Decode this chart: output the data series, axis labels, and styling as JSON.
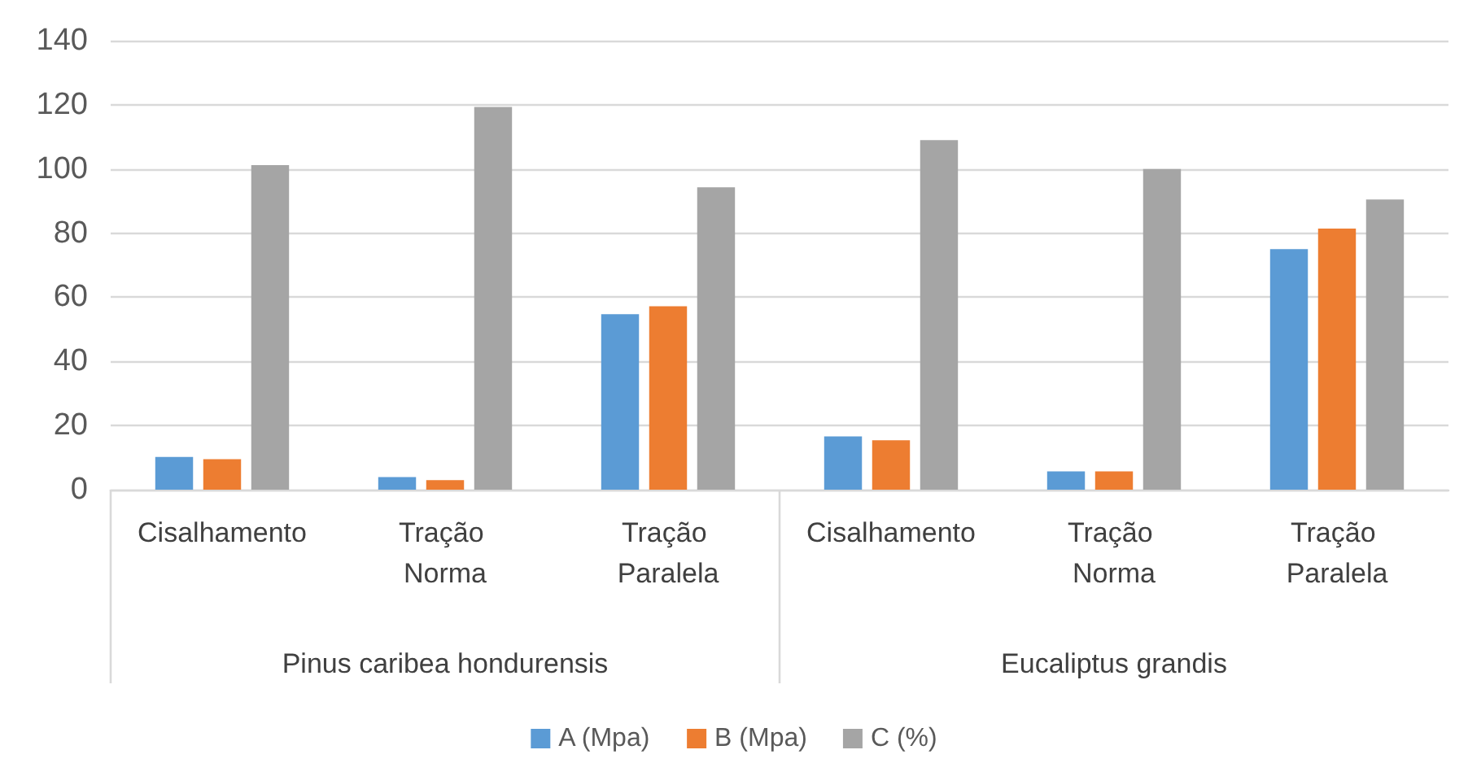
{
  "chart_data": {
    "type": "bar",
    "categories": [
      "Cisalhamento",
      "Tração Norma",
      "Tração Paralela",
      "Cisalhamento",
      "Tração Norma",
      "Tração Paralela"
    ],
    "series": [
      {
        "name": "A (Mpa)",
        "color": "#5b9bd5",
        "values": [
          10.2,
          3.9,
          54.7,
          16.6,
          5.7,
          75
        ]
      },
      {
        "name": "B (Mpa)",
        "color": "#ed7d31",
        "values": [
          9.5,
          3,
          57.2,
          15.4,
          5.7,
          81.4
        ]
      },
      {
        "name": "C (%)",
        "color": "#a5a5a5",
        "values": [
          101.2,
          119.3,
          94.3,
          109,
          100,
          90.5
        ]
      }
    ],
    "annotations": [
      "Pinus caribea hondurensis",
      "Eucaliptus grandis"
    ],
    "ylim": [
      0,
      140
    ],
    "yticks": [
      0,
      20,
      40,
      60,
      80,
      100,
      120,
      140
    ],
    "grid": "y",
    "legend": "bottom"
  }
}
